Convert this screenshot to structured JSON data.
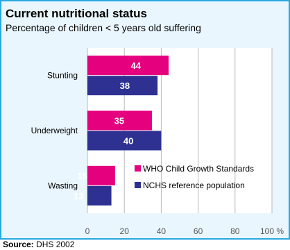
{
  "header": {
    "title": "Current nutritional status",
    "subtitle": "Percentage of children < 5 years old suffering"
  },
  "source": {
    "label": "Source:",
    "text": "DHS 2002"
  },
  "chart_data": {
    "type": "bar",
    "orientation": "horizontal",
    "categories": [
      "Stunting",
      "Underweight",
      "Wasting"
    ],
    "series": [
      {
        "name": "WHO Child Growth Standards",
        "values": [
          44,
          35,
          15
        ],
        "color": "#e5007e"
      },
      {
        "name": "NCHS reference population",
        "values": [
          38,
          40,
          13
        ],
        "color": "#2e3192"
      }
    ],
    "xlim": [
      0,
      100
    ],
    "xticks": [
      "0",
      "20",
      "40",
      "60",
      "80",
      "100 %"
    ],
    "grid": true,
    "legend_position": "inside-lower-right",
    "data_labels": true
  }
}
